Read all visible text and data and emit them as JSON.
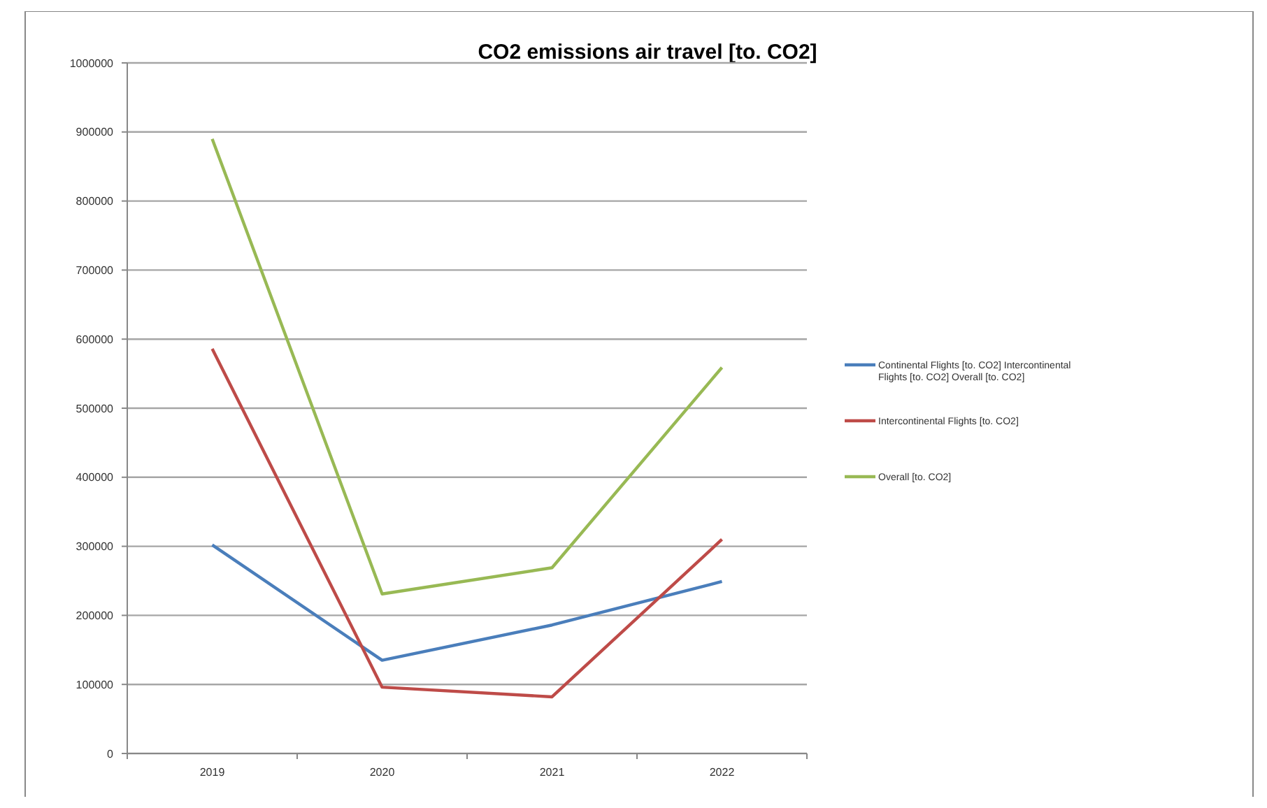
{
  "chart_data": {
    "type": "line",
    "title": "CO2 emissions air travel [to. CO2]",
    "categories": [
      "2019",
      "2020",
      "2021",
      "2022"
    ],
    "series": [
      {
        "name": "Continental Flights [to. CO2] Intercontinental Flights [to. CO2] Overall [to. CO2]",
        "color": "#4a7ebb",
        "values": [
          302000,
          135000,
          186000,
          249000
        ]
      },
      {
        "name": "Intercontinental Flights [to. CO2]",
        "color": "#be4b48",
        "values": [
          586000,
          96000,
          82000,
          310000
        ]
      },
      {
        "name": "Overall [to. CO2]",
        "color": "#98b954",
        "values": [
          890000,
          231000,
          269000,
          559000
        ]
      }
    ],
    "ylim": [
      0,
      1000000
    ],
    "yticks": [
      0,
      100000,
      200000,
      300000,
      400000,
      500000,
      600000,
      700000,
      800000,
      900000,
      1000000
    ],
    "grid": "y",
    "legend": "right",
    "marker": "none",
    "line_style": "solid"
  }
}
